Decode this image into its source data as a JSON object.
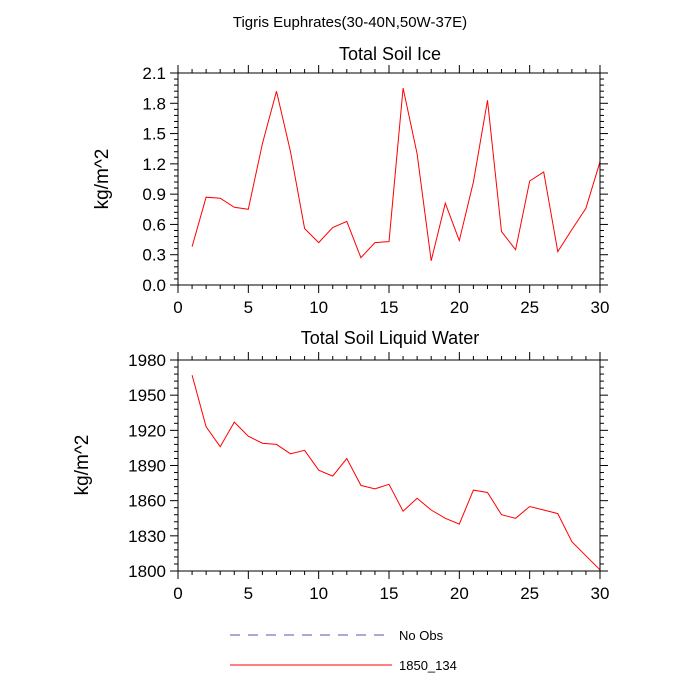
{
  "suptitle": "Tigris Euphrates(30-40N,50W-37E)",
  "chart_data": [
    {
      "type": "line",
      "title": "Total Soil Ice",
      "xlabel": "",
      "ylabel": "kg/m^2",
      "xlim": [
        0,
        30
      ],
      "ylim": [
        0.0,
        2.1
      ],
      "xticks": [
        0,
        5,
        10,
        15,
        20,
        25,
        30
      ],
      "xtick_labels": [
        "0",
        "5",
        "10",
        "15",
        "20",
        "25",
        "30"
      ],
      "yticks": [
        0.0,
        0.3,
        0.6,
        0.9,
        1.2,
        1.5,
        1.8,
        2.1
      ],
      "ytick_labels": [
        "0.0",
        "0.3",
        "0.6",
        "0.9",
        "1.2",
        "1.5",
        "1.8",
        "2.1"
      ],
      "x": [
        1,
        2,
        3,
        4,
        5,
        6,
        7,
        8,
        9,
        10,
        11,
        12,
        13,
        14,
        15,
        16,
        17,
        18,
        19,
        20,
        21,
        22,
        23,
        24,
        25,
        26,
        27,
        28,
        29,
        30
      ],
      "series": [
        {
          "name": "1850_134",
          "color": "#ff0000",
          "values": [
            0.38,
            0.87,
            0.86,
            0.77,
            0.75,
            1.4,
            1.92,
            1.32,
            0.56,
            0.42,
            0.57,
            0.63,
            0.27,
            0.42,
            0.43,
            1.95,
            1.3,
            0.24,
            0.81,
            0.44,
            1.02,
            1.83,
            0.53,
            0.35,
            1.03,
            1.12,
            0.33,
            0.55,
            0.76,
            1.22
          ]
        }
      ]
    },
    {
      "type": "line",
      "title": "Total Soil Liquid Water",
      "xlabel": "",
      "ylabel": "kg/m^2",
      "xlim": [
        0,
        30
      ],
      "ylim": [
        1800,
        1980
      ],
      "xticks": [
        0,
        5,
        10,
        15,
        20,
        25,
        30
      ],
      "xtick_labels": [
        "0",
        "5",
        "10",
        "15",
        "20",
        "25",
        "30"
      ],
      "yticks": [
        1800,
        1830,
        1860,
        1890,
        1920,
        1950,
        1980
      ],
      "ytick_labels": [
        "1800",
        "1830",
        "1860",
        "1890",
        "1920",
        "1950",
        "1980"
      ],
      "x": [
        1,
        2,
        3,
        4,
        5,
        6,
        7,
        8,
        9,
        10,
        11,
        12,
        13,
        14,
        15,
        16,
        17,
        18,
        19,
        20,
        21,
        22,
        23,
        24,
        25,
        26,
        27,
        28,
        29,
        30
      ],
      "series": [
        {
          "name": "1850_134",
          "color": "#ff0000",
          "values": [
            1967,
            1923,
            1906,
            1927,
            1915,
            1909,
            1908,
            1900,
            1903,
            1886,
            1881,
            1896,
            1873,
            1870,
            1874,
            1851,
            1862,
            1852,
            1845,
            1840,
            1869,
            1867,
            1848,
            1845,
            1855,
            1852,
            1849,
            1825,
            1813,
            1801
          ]
        }
      ]
    }
  ],
  "legend": {
    "position": "bottom-center",
    "items": [
      {
        "label": "No Obs",
        "color": "#5555aa",
        "dash": "dashed"
      },
      {
        "label": "1850_134",
        "color": "#ff0000",
        "dash": "solid"
      }
    ]
  }
}
